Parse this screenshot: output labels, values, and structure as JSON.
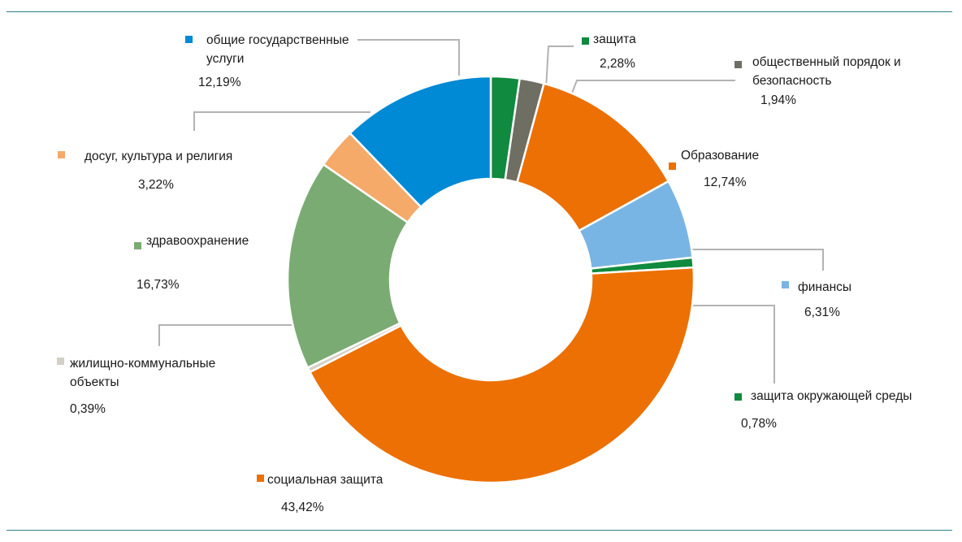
{
  "chart_data": {
    "type": "pie",
    "donut": true,
    "start_angle_deg": 0,
    "direction": "clockwise",
    "slices": [
      {
        "label": "защита",
        "value": 2.28,
        "value_label": "2,28%",
        "color": "#108a3e"
      },
      {
        "label": "общественный порядок и безопасность",
        "label_lines": [
          "общественный порядок и",
          "безопасность"
        ],
        "value": 1.94,
        "value_label": "1,94%",
        "color": "#6f6e63"
      },
      {
        "label": "Образование",
        "value": 12.74,
        "value_label": "12,74%",
        "color": "#ec7003"
      },
      {
        "label": "финансы",
        "value": 6.31,
        "value_label": "6,31%",
        "color": "#79b5e4"
      },
      {
        "label": "защита окружающей среды",
        "value": 0.78,
        "value_label": "0,78%",
        "color": "#108a3e"
      },
      {
        "label": "социальная защита",
        "value": 43.42,
        "value_label": "43,42%",
        "color": "#ec7003"
      },
      {
        "label": "жилищно-коммунальные объекты",
        "label_lines": [
          "жилищно-коммунальные",
          "объекты"
        ],
        "value": 0.39,
        "value_label": "0,39%",
        "color": "#d3d1c5"
      },
      {
        "label": "здравоохранение",
        "value": 16.73,
        "value_label": "16,73%",
        "color": "#7aab73"
      },
      {
        "label": "досуг, культура и религия",
        "value": 3.22,
        "value_label": "3,22%",
        "color": "#f5aa6a"
      },
      {
        "label": "общие государственные услуги",
        "label_lines": [
          "общие государственные",
          "услуги"
        ],
        "value": 12.19,
        "value_label": "12,19%",
        "color": "#0089d4"
      }
    ]
  }
}
